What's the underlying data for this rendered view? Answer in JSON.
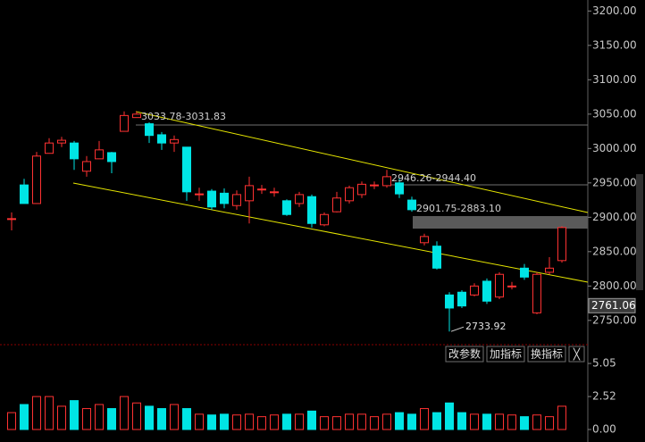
{
  "chart_data": [
    {
      "type": "candlestick",
      "open": [
        2898,
        2947,
        2920,
        2993,
        3008,
        3008,
        2967,
        2985,
        2994,
        3025,
        3045,
        3036,
        3020,
        3008,
        3002,
        2934,
        2938,
        2935,
        2917,
        2924,
        2941,
        2937,
        2924,
        2920,
        2930,
        2889,
        2908,
        2924,
        2933,
        2947,
        2946,
        2950,
        2925,
        2863,
        2858,
        2787,
        2791,
        2787,
        2807,
        2784,
        2800,
        2826,
        2761,
        2820,
        2837
      ],
      "high": [
        2907,
        2956,
        2995,
        3015,
        3017,
        3011,
        2989,
        3011,
        2995,
        3054,
        3054,
        3038,
        3024,
        3019,
        3002,
        2943,
        2941,
        2942,
        2939,
        2959,
        2947,
        2943,
        2926,
        2937,
        2933,
        2907,
        2937,
        2946,
        2952,
        2952,
        2969,
        2956,
        2930,
        2876,
        2865,
        2791,
        2794,
        2804,
        2811,
        2820,
        2806,
        2832,
        2820,
        2842,
        2887
      ],
      "low": [
        2881,
        2920,
        2920,
        2993,
        3002,
        2969,
        2959,
        2985,
        2964,
        3025,
        3045,
        3008,
        2998,
        2995,
        2924,
        2924,
        2911,
        2913,
        2911,
        2891,
        2934,
        2930,
        2902,
        2915,
        2885,
        2887,
        2907,
        2920,
        2928,
        2941,
        2943,
        2928,
        2908,
        2859,
        2824,
        2733.92,
        2768,
        2785,
        2774,
        2781,
        2795,
        2809,
        2759,
        2817,
        2834
      ],
      "close": [
        2898,
        2920,
        2989,
        3008,
        3012,
        2985,
        2981,
        2998,
        2981,
        3048,
        3050,
        3019,
        3008,
        3013,
        2937,
        2934,
        2915,
        2920,
        2933,
        2946,
        2941,
        2937,
        2904,
        2933,
        2891,
        2904,
        2928,
        2943,
        2948,
        2947,
        2959,
        2934,
        2911,
        2872,
        2826,
        2768,
        2771,
        2800,
        2778,
        2817,
        2800,
        2813,
        2817,
        2826,
        2885
      ],
      "up_color": "#ff3232",
      "down_color": "#00e5e5",
      "ylim": [
        2716,
        3216
      ],
      "yticks": [
        {
          "value": 2750,
          "label": "2750.00"
        },
        {
          "value": 2800,
          "label": "2800.00"
        },
        {
          "value": 2850,
          "label": "2850.00"
        },
        {
          "value": 2900,
          "label": "2900.00"
        },
        {
          "value": 2950,
          "label": "2950.00"
        },
        {
          "value": 3000,
          "label": "3000.00"
        },
        {
          "value": 3050,
          "label": "3050.00"
        },
        {
          "value": 3100,
          "label": "3100.00"
        },
        {
          "value": 3150,
          "label": "3150.00"
        },
        {
          "value": 3200,
          "label": "3200.00"
        }
      ],
      "price_marker": 2761.06,
      "annotations": [
        "3033.78-3031.83",
        "2946.26-2944.40",
        "2901.75-2883.10"
      ]
    },
    {
      "type": "volume",
      "values": [
        1.29,
        1.91,
        2.52,
        2.52,
        1.78,
        2.21,
        1.6,
        1.91,
        1.6,
        2.52,
        2.03,
        1.78,
        1.6,
        1.91,
        1.6,
        1.17,
        1.11,
        1.17,
        1.11,
        1.17,
        0.98,
        1.11,
        1.17,
        1.17,
        1.41,
        0.98,
        0.98,
        1.17,
        1.17,
        0.98,
        1.17,
        1.29,
        1.17,
        1.6,
        1.29,
        2.03,
        1.29,
        1.17,
        1.17,
        1.17,
        1.11,
        0.98,
        1.11,
        0.98,
        1.78
      ],
      "ylim": [
        0,
        6.35
      ],
      "yticks": [
        {
          "value": 0,
          "label": "0.00"
        },
        {
          "value": 2.52,
          "label": "2.52"
        },
        {
          "value": 5.05,
          "label": "5.05"
        }
      ]
    }
  ],
  "toolbar": {
    "buttons": [
      "改参数",
      "加指标",
      "换指标",
      "╳"
    ]
  }
}
